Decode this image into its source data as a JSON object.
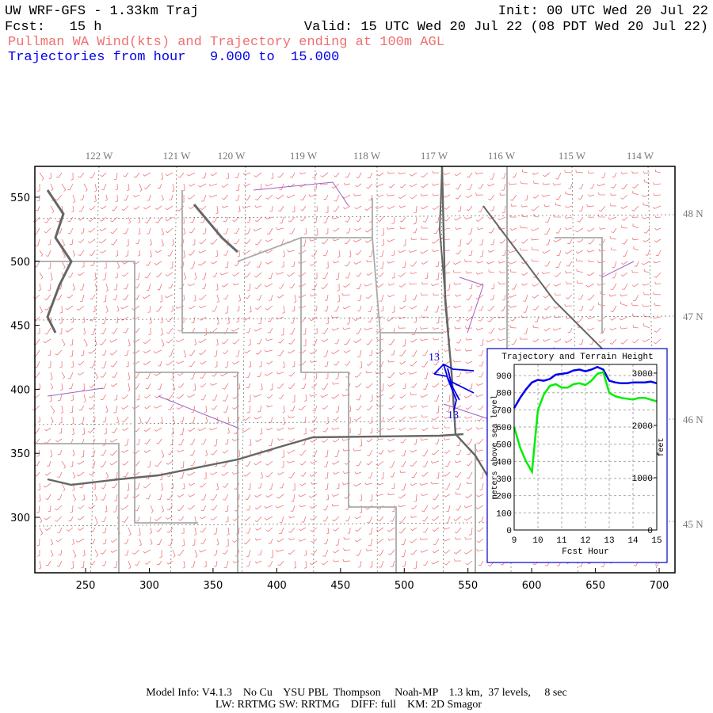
{
  "header": {
    "title": "UW WRF-GFS - 1.33km Traj",
    "init": "Init: 00 UTC Wed 20 Jul 22",
    "fcst": "Fcst:   15 h",
    "valid": "Valid: 15 UTC Wed 20 Jul 22 (08 PDT Wed 20 Jul 22)",
    "subtitle": "Pullman WA Wind(kts) and Trajectory ending at 100m AGL",
    "traj_range": "Trajectories from hour   9.000 to  15.000"
  },
  "map": {
    "xlim": [
      210.2,
      712.4
    ],
    "ylim": [
      256.7,
      574.1
    ],
    "xticks": [
      250,
      300,
      350,
      400,
      450,
      500,
      550,
      600,
      650,
      700
    ],
    "yticks": [
      300,
      350,
      400,
      450,
      500,
      550
    ],
    "lon_labels": [
      "122 W",
      "121 W",
      "120 W",
      "119 W",
      "118 W",
      "117 W",
      "116 W",
      "115 W",
      "114 W"
    ],
    "lat_labels": [
      "48 N",
      "47 N",
      "46 N",
      "45 N"
    ],
    "trajectory_labels": [
      "13",
      "13"
    ]
  },
  "chart_data": {
    "type": "line",
    "title": "Trajectory and Terrain Height",
    "x_label": "Fcst Hour",
    "y_label": "meters above sea level",
    "y2_label": "feet",
    "grid": true,
    "xlim": [
      9,
      15
    ],
    "xticks": [
      9,
      10,
      11,
      12,
      13,
      14,
      15
    ],
    "ylim": [
      0,
      965
    ],
    "yticks": [
      0,
      100,
      200,
      300,
      400,
      500,
      600,
      700,
      800,
      900
    ],
    "y2lim": [
      0,
      3166
    ],
    "y2ticks": [
      0,
      1000,
      2000,
      3000
    ],
    "x": [
      9,
      9.25,
      9.5,
      9.75,
      10,
      10.25,
      10.5,
      10.75,
      11,
      11.25,
      11.5,
      11.75,
      12,
      12.25,
      12.5,
      12.75,
      13,
      13.25,
      13.5,
      13.75,
      14,
      14.25,
      14.5,
      14.75,
      15
    ],
    "series": [
      {
        "color": "#0000ee",
        "values": [
          710,
          770,
          820,
          860,
          875,
          870,
          880,
          905,
          910,
          915,
          930,
          935,
          925,
          935,
          950,
          935,
          870,
          860,
          855,
          855,
          860,
          860,
          860,
          865,
          855
        ]
      },
      {
        "color": "#00ee00",
        "values": [
          600,
          480,
          400,
          340,
          700,
          790,
          840,
          850,
          830,
          830,
          850,
          855,
          845,
          870,
          910,
          920,
          800,
          780,
          770,
          765,
          760,
          770,
          770,
          760,
          750
        ]
      }
    ]
  },
  "footer": {
    "line1": "Model Info: V4.1.3    No Cu    YSU PBL  Thompson     Noah-MP    1.3 km,  37 levels,     8 sec",
    "line2": "LW: RRTMG SW: RRTMG    DIFF: full    KM: 2D Smagor"
  }
}
